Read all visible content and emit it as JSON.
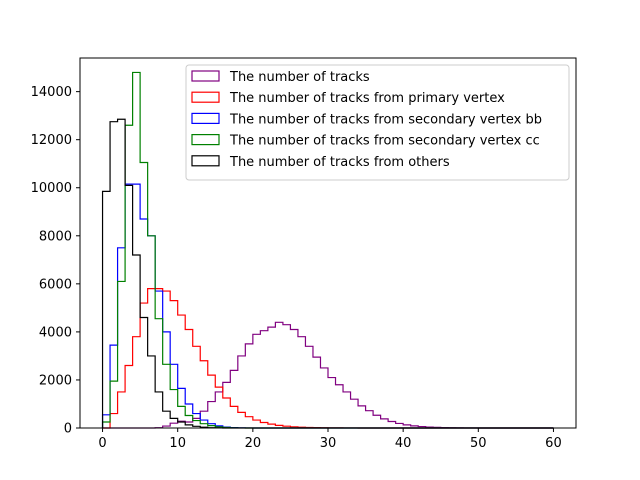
{
  "chart_data": {
    "type": "histogram-step",
    "title": "",
    "xlabel": "",
    "ylabel": "",
    "xlim": [
      -3,
      63
    ],
    "ylim": [
      0,
      15400
    ],
    "bin_width": 1,
    "bin_start": 0,
    "x_ticks": [
      0,
      10,
      20,
      30,
      40,
      50,
      60
    ],
    "y_ticks": [
      0,
      2000,
      4000,
      6000,
      8000,
      10000,
      12000,
      14000
    ],
    "grid": false,
    "legend_placement": "top-right",
    "series": [
      {
        "name": "The number of tracks",
        "color": "#800080",
        "values": [
          0,
          0,
          0,
          0,
          0,
          0,
          0,
          10,
          80,
          200,
          280,
          250,
          400,
          700,
          1100,
          1500,
          1900,
          2400,
          3000,
          3500,
          3900,
          4050,
          4200,
          4400,
          4300,
          4100,
          3800,
          3400,
          2950,
          2500,
          2100,
          1800,
          1500,
          1200,
          920,
          720,
          530,
          380,
          270,
          190,
          130,
          90,
          60,
          40,
          25,
          15,
          10,
          5,
          3,
          2,
          1,
          1,
          0,
          0,
          0,
          0,
          0,
          0,
          0,
          0
        ]
      },
      {
        "name": "The number of tracks from primary vertex",
        "color": "#ff0000",
        "values": [
          0,
          600,
          1500,
          2600,
          3800,
          5200,
          5800,
          5800,
          5700,
          5300,
          4700,
          4100,
          3400,
          2800,
          2200,
          1700,
          1250,
          900,
          650,
          470,
          330,
          230,
          160,
          110,
          75,
          50,
          33,
          22,
          15,
          10,
          6,
          4,
          3,
          2,
          1,
          1,
          0,
          0,
          0,
          0,
          0,
          0,
          0,
          0,
          0,
          0,
          0,
          0,
          0,
          0,
          0,
          0,
          0,
          0,
          0,
          0,
          0,
          0,
          0,
          0
        ]
      },
      {
        "name": "The number of tracks from secondary vertex bb",
        "color": "#0000ff",
        "values": [
          550,
          3450,
          7500,
          10150,
          10150,
          8700,
          8000,
          5700,
          4000,
          2650,
          1650,
          1000,
          600,
          330,
          180,
          90,
          40,
          15,
          5,
          2,
          0,
          0,
          0,
          0,
          0,
          0,
          0,
          0,
          0,
          0,
          0,
          0,
          0,
          0,
          0,
          0,
          0,
          0,
          0,
          0,
          0,
          0,
          0,
          0,
          0,
          0,
          0,
          0,
          0,
          0,
          0,
          0,
          0,
          0,
          0,
          0,
          0,
          0,
          0,
          0
        ]
      },
      {
        "name": "The number of tracks from secondary vertex cc",
        "color": "#008000",
        "values": [
          250,
          1950,
          6100,
          12600,
          14800,
          11050,
          8000,
          4550,
          2650,
          1600,
          900,
          520,
          310,
          180,
          100,
          50,
          20,
          8,
          3,
          1,
          0,
          0,
          0,
          0,
          0,
          0,
          0,
          0,
          0,
          0,
          0,
          0,
          0,
          0,
          0,
          0,
          0,
          0,
          0,
          0,
          0,
          0,
          0,
          0,
          0,
          0,
          0,
          0,
          0,
          0,
          0,
          0,
          0,
          0,
          0,
          0,
          0,
          0,
          0,
          0
        ]
      },
      {
        "name": "The number of tracks from others",
        "color": "#000000",
        "values": [
          9850,
          12750,
          12850,
          10100,
          7200,
          4600,
          3000,
          1500,
          700,
          400,
          250,
          130,
          70,
          30,
          10,
          4,
          1,
          0,
          0,
          0,
          0,
          0,
          0,
          0,
          0,
          0,
          0,
          0,
          0,
          0,
          0,
          0,
          0,
          0,
          0,
          0,
          0,
          0,
          0,
          0,
          0,
          0,
          0,
          0,
          0,
          0,
          0,
          0,
          0,
          0,
          0,
          0,
          0,
          0,
          0,
          0,
          0,
          0,
          0,
          0
        ]
      }
    ]
  }
}
